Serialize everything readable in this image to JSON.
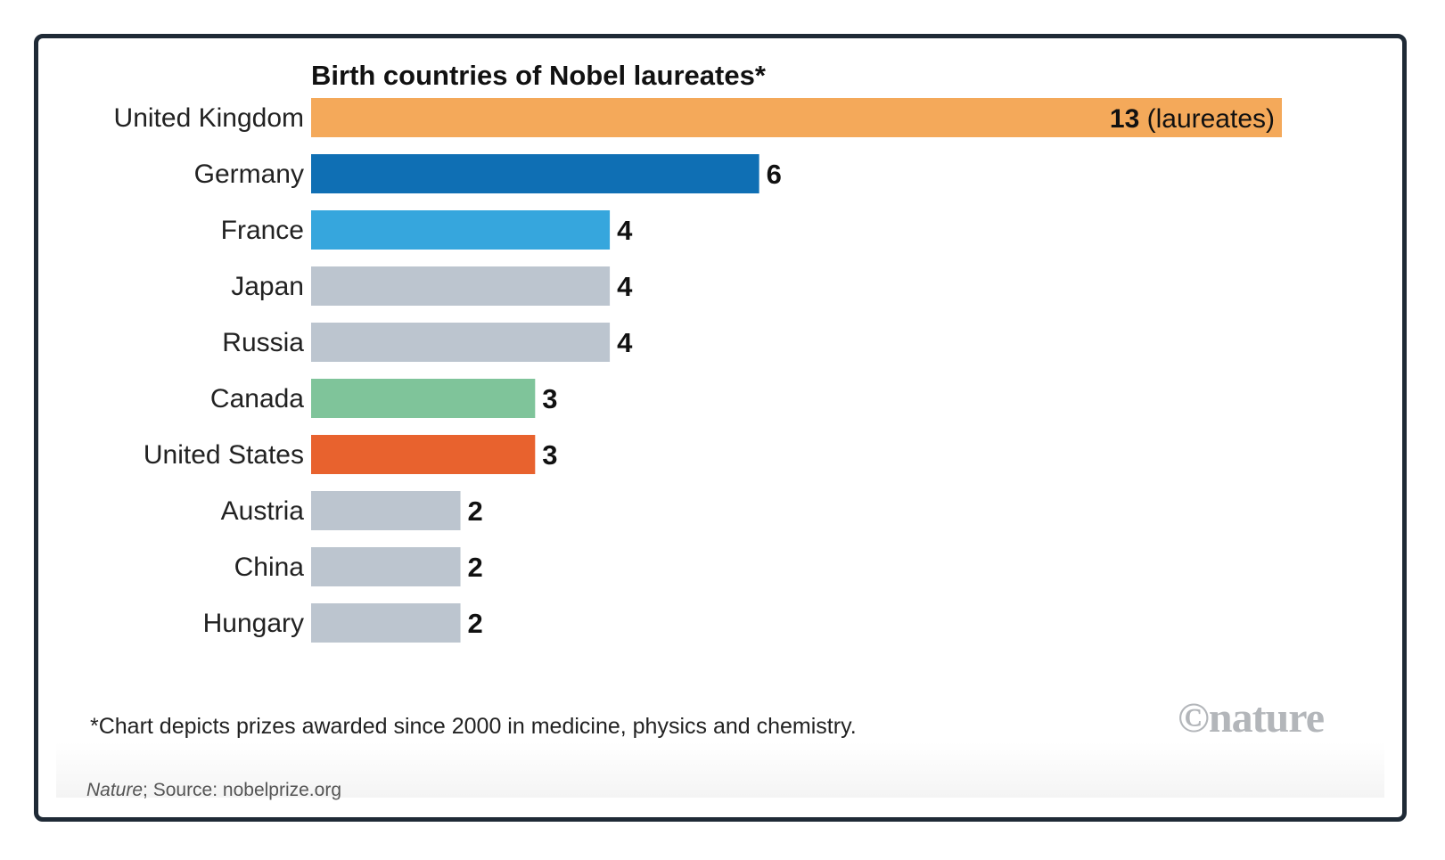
{
  "chart_data": {
    "type": "bar",
    "orientation": "horizontal",
    "title": "Birth countries of Nobel laureates*",
    "categories": [
      "United Kingdom",
      "Germany",
      "France",
      "Japan",
      "Russia",
      "Canada",
      "United States",
      "Austria",
      "China",
      "Hungary"
    ],
    "values": [
      13,
      6,
      4,
      4,
      4,
      3,
      3,
      2,
      2,
      2
    ],
    "bar_colors": [
      "#f4a95a",
      "#0f6fb4",
      "#36a6dd",
      "#bcc5cf",
      "#bcc5cf",
      "#7fc49a",
      "#e8622e",
      "#bcc5cf",
      "#bcc5cf",
      "#bcc5cf"
    ],
    "first_value_unit": "(laureates)",
    "xlim": [
      0,
      13
    ],
    "grid": false,
    "legend": "none"
  },
  "footnote": "*Chart depicts prizes awarded since 2000 in medicine, physics and chemistry.",
  "logo_text": "©nature",
  "source": {
    "publication": "Nature",
    "rest": "; Source: nobelprize.org"
  }
}
